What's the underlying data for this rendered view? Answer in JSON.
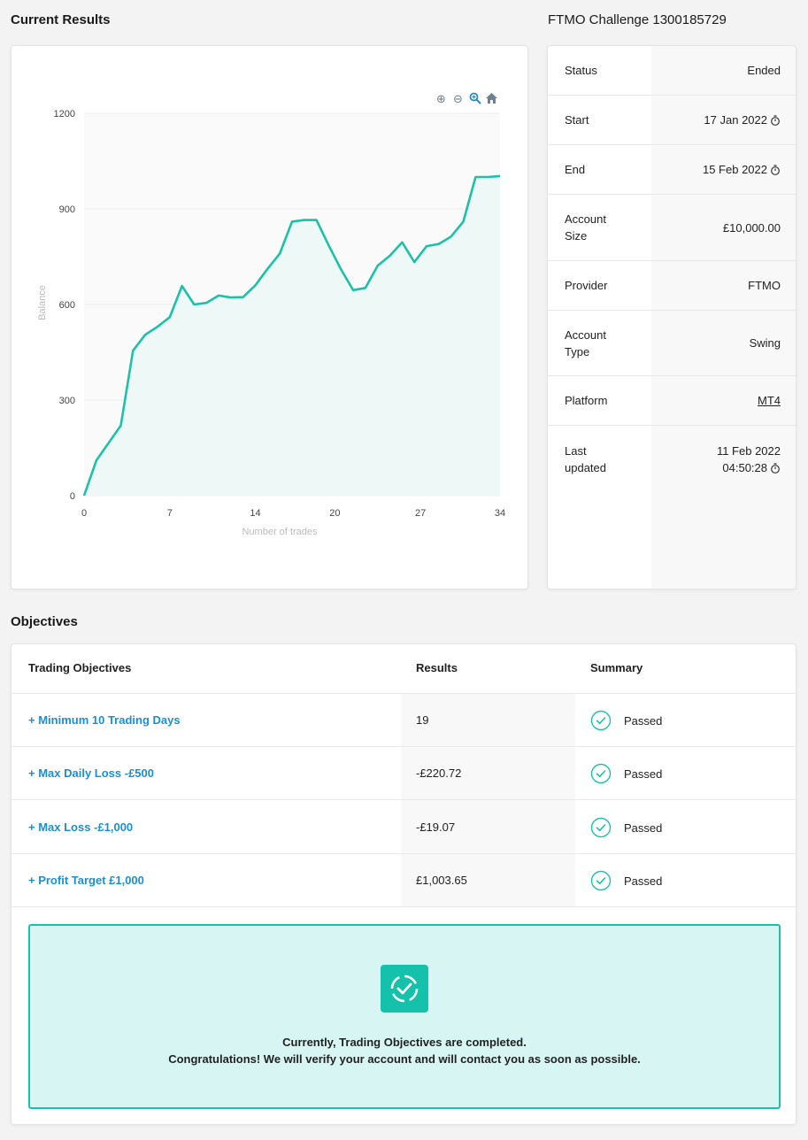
{
  "results": {
    "title": "Current Results"
  },
  "challenge": {
    "title": "FTMO Challenge 1300185729",
    "rows": [
      {
        "key": "Status",
        "value": "Ended"
      },
      {
        "key": "Start",
        "value": "17 Jan 2022"
      },
      {
        "key": "End",
        "value": "15 Feb 2022"
      },
      {
        "key": "Account Size",
        "value": "£10,000.00"
      },
      {
        "key": "Provider",
        "value": "FTMO"
      },
      {
        "key": "Account Type",
        "value": "Swing"
      },
      {
        "key": "Platform",
        "value": "MT4"
      },
      {
        "key": "Last updated",
        "value": "11 Feb 2022",
        "value2": "04:50:28"
      }
    ]
  },
  "chart_toolbar": {
    "zoom_in_icon": "zoom-in-icon",
    "zoom_out_icon": "zoom-out-icon",
    "selection_zoom_icon": "magnifier-icon",
    "reset_icon": "home-icon"
  },
  "chart_data": {
    "type": "area",
    "xlabel": "Number of trades",
    "ylabel": "Balance",
    "xlim": [
      0,
      34
    ],
    "ylim": [
      0,
      1200
    ],
    "xticks": [
      "0",
      "7",
      "14",
      "20",
      "27",
      "34"
    ],
    "xtick_values": [
      0,
      7,
      14,
      20.5,
      27.5,
      34
    ],
    "yticks": [
      "0",
      "300",
      "600",
      "900",
      "1200"
    ],
    "ytick_values": [
      0,
      300,
      600,
      900,
      1200
    ],
    "color": "#1cc1a6",
    "fill": "#eef8f6",
    "grid": true,
    "x": [
      0,
      1,
      2,
      3,
      4,
      5,
      6,
      7,
      8,
      9,
      10,
      11,
      12,
      13,
      14,
      15,
      16,
      17,
      18,
      19,
      20,
      21,
      22,
      23,
      24,
      25,
      26,
      27,
      28,
      29,
      30,
      31,
      32,
      33,
      34
    ],
    "y": [
      0,
      110,
      165,
      220,
      455,
      505,
      530,
      560,
      658,
      600,
      605,
      628,
      622,
      623,
      660,
      712,
      760,
      860,
      865,
      865,
      785,
      710,
      645,
      652,
      722,
      753,
      795,
      733,
      783,
      790,
      813,
      860,
      1000,
      1000,
      1003
    ]
  },
  "objectives": {
    "title": "Objectives",
    "headers": {
      "objective": "Trading Objectives",
      "results": "Results",
      "summary": "Summary"
    },
    "rows": [
      {
        "name": "+ Minimum 10 Trading Days",
        "result": "19",
        "summary": "Passed"
      },
      {
        "name": "+ Max Daily Loss -£500",
        "result": "-£220.72",
        "summary": "Passed"
      },
      {
        "name": "+ Max Loss -£1,000",
        "result": "-£19.07",
        "summary": "Passed"
      },
      {
        "name": "+ Profit Target £1,000",
        "result": "£1,003.65",
        "summary": "Passed"
      }
    ],
    "banner": {
      "line1": "Currently, Trading Objectives are completed.",
      "line2": "Congratulations! We will verify your account and will contact you as soon as possible."
    }
  }
}
